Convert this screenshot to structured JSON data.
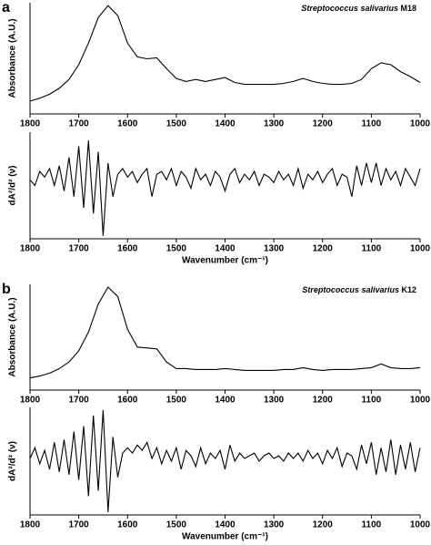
{
  "chart_data": [
    {
      "type": "line",
      "panel": "a",
      "title": "Streptococcus salivarius",
      "strain": "M18",
      "ylabel": "Absorbance (A.U.)",
      "color": "#000000",
      "xlim": [
        1800,
        1000
      ],
      "ylim": [
        -0.1,
        1.03
      ],
      "xticks": [
        1800,
        1700,
        1600,
        1500,
        1400,
        1300,
        1200,
        1100,
        1000
      ],
      "x": [
        1800,
        1780,
        1760,
        1740,
        1720,
        1700,
        1680,
        1660,
        1640,
        1620,
        1600,
        1580,
        1560,
        1540,
        1520,
        1500,
        1480,
        1460,
        1440,
        1420,
        1400,
        1380,
        1360,
        1340,
        1320,
        1300,
        1280,
        1260,
        1240,
        1220,
        1200,
        1180,
        1160,
        1140,
        1120,
        1100,
        1080,
        1060,
        1040,
        1020,
        1000
      ],
      "values": [
        0.03,
        0.06,
        0.1,
        0.16,
        0.25,
        0.4,
        0.62,
        0.88,
        1.0,
        0.9,
        0.62,
        0.48,
        0.46,
        0.47,
        0.36,
        0.26,
        0.23,
        0.25,
        0.23,
        0.25,
        0.27,
        0.22,
        0.2,
        0.2,
        0.2,
        0.2,
        0.21,
        0.23,
        0.26,
        0.23,
        0.21,
        0.2,
        0.2,
        0.21,
        0.25,
        0.36,
        0.42,
        0.4,
        0.33,
        0.28,
        0.22
      ]
    },
    {
      "type": "line",
      "ylabel": "dA²/d² (ν)",
      "xlabel": "Wavenumber (cm⁻¹)",
      "color": "#000000",
      "xlim": [
        1800,
        1000
      ],
      "ylim": [
        -1.05,
        0.85
      ],
      "xticks": [
        1800,
        1700,
        1600,
        1500,
        1400,
        1300,
        1200,
        1100,
        1000
      ],
      "x": [
        1800,
        1790,
        1780,
        1770,
        1760,
        1750,
        1740,
        1730,
        1720,
        1710,
        1700,
        1690,
        1680,
        1670,
        1660,
        1650,
        1640,
        1630,
        1620,
        1610,
        1600,
        1590,
        1580,
        1570,
        1560,
        1550,
        1540,
        1530,
        1520,
        1510,
        1500,
        1490,
        1480,
        1470,
        1460,
        1450,
        1440,
        1430,
        1420,
        1410,
        1400,
        1390,
        1380,
        1370,
        1360,
        1350,
        1340,
        1330,
        1320,
        1310,
        1300,
        1290,
        1280,
        1270,
        1260,
        1250,
        1240,
        1230,
        1220,
        1210,
        1200,
        1190,
        1180,
        1170,
        1160,
        1150,
        1140,
        1130,
        1120,
        1110,
        1100,
        1090,
        1080,
        1070,
        1060,
        1050,
        1040,
        1030,
        1020,
        1010,
        1000
      ],
      "values": [
        0.0,
        -0.1,
        0.15,
        0.05,
        0.2,
        -0.1,
        0.25,
        -0.2,
        0.4,
        -0.3,
        0.6,
        -0.5,
        0.7,
        -0.6,
        0.5,
        -1.0,
        0.3,
        -0.3,
        0.1,
        0.2,
        0.05,
        0.15,
        -0.05,
        0.1,
        0.2,
        -0.3,
        0.1,
        0.15,
        0.0,
        0.2,
        -0.1,
        0.15,
        0.05,
        -0.15,
        0.2,
        0.0,
        0.1,
        -0.1,
        0.15,
        0.05,
        -0.2,
        0.1,
        0.2,
        -0.05,
        0.1,
        0.0,
        0.15,
        -0.1,
        0.1,
        0.05,
        -0.05,
        0.15,
        0.0,
        0.1,
        -0.1,
        0.2,
        -0.15,
        0.1,
        0.0,
        0.15,
        -0.05,
        0.1,
        0.2,
        -0.1,
        0.1,
        0.05,
        -0.3,
        0.25,
        -0.1,
        0.3,
        -0.05,
        0.3,
        -0.1,
        0.2,
        0.0,
        0.15,
        -0.1,
        0.2,
        0.05,
        -0.1,
        0.2
      ]
    },
    {
      "type": "line",
      "panel": "b",
      "title": "Streptococcus salivarius",
      "strain": "K12",
      "ylabel": "Absorbance (A.U.)",
      "color": "#000000",
      "xlim": [
        1800,
        1000
      ],
      "ylim": [
        -0.1,
        1.03
      ],
      "xticks": [
        1800,
        1700,
        1600,
        1500,
        1400,
        1300,
        1200,
        1100,
        1000
      ],
      "x": [
        1800,
        1780,
        1760,
        1740,
        1720,
        1700,
        1680,
        1660,
        1640,
        1620,
        1600,
        1580,
        1560,
        1540,
        1520,
        1500,
        1480,
        1460,
        1440,
        1420,
        1400,
        1380,
        1360,
        1340,
        1320,
        1300,
        1280,
        1260,
        1240,
        1220,
        1200,
        1180,
        1160,
        1140,
        1120,
        1100,
        1080,
        1060,
        1040,
        1020,
        1000
      ],
      "values": [
        0.03,
        0.05,
        0.08,
        0.13,
        0.2,
        0.32,
        0.52,
        0.82,
        1.0,
        0.9,
        0.55,
        0.36,
        0.35,
        0.34,
        0.2,
        0.13,
        0.13,
        0.12,
        0.12,
        0.12,
        0.13,
        0.12,
        0.11,
        0.11,
        0.11,
        0.11,
        0.12,
        0.12,
        0.14,
        0.12,
        0.11,
        0.12,
        0.12,
        0.12,
        0.13,
        0.14,
        0.18,
        0.14,
        0.13,
        0.13,
        0.14
      ]
    },
    {
      "type": "line",
      "ylabel": "dA²/d² (ν)",
      "xlabel": "Wavenumber (cm⁻¹)",
      "color": "#000000",
      "xlim": [
        1800,
        1000
      ],
      "ylim": [
        -1.05,
        0.95
      ],
      "xticks": [
        1800,
        1700,
        1600,
        1500,
        1400,
        1300,
        1200,
        1100,
        1000
      ],
      "x": [
        1800,
        1790,
        1780,
        1770,
        1760,
        1750,
        1740,
        1730,
        1720,
        1710,
        1700,
        1690,
        1680,
        1670,
        1660,
        1650,
        1640,
        1630,
        1620,
        1610,
        1600,
        1590,
        1580,
        1570,
        1560,
        1550,
        1540,
        1530,
        1520,
        1510,
        1500,
        1490,
        1480,
        1470,
        1460,
        1450,
        1440,
        1430,
        1420,
        1410,
        1400,
        1390,
        1380,
        1370,
        1360,
        1350,
        1340,
        1330,
        1320,
        1310,
        1300,
        1290,
        1280,
        1270,
        1260,
        1250,
        1240,
        1230,
        1220,
        1210,
        1200,
        1190,
        1180,
        1170,
        1160,
        1150,
        1140,
        1130,
        1120,
        1110,
        1100,
        1090,
        1080,
        1070,
        1060,
        1050,
        1040,
        1030,
        1020,
        1010,
        1000
      ],
      "values": [
        0.0,
        0.2,
        -0.1,
        0.15,
        -0.2,
        0.3,
        -0.25,
        0.35,
        -0.3,
        0.5,
        -0.4,
        0.6,
        -0.7,
        0.8,
        -0.6,
        0.9,
        -1.0,
        0.4,
        -0.35,
        0.1,
        0.2,
        0.1,
        0.25,
        0.15,
        0.3,
        0.0,
        0.2,
        -0.1,
        0.15,
        -0.05,
        0.2,
        -0.2,
        0.15,
        0.05,
        -0.15,
        0.2,
        -0.1,
        0.1,
        0.0,
        0.15,
        -0.2,
        0.25,
        -0.05,
        0.1,
        0.0,
        0.05,
        0.1,
        -0.05,
        0.05,
        0.1,
        0.0,
        0.05,
        -0.05,
        0.1,
        0.0,
        0.1,
        -0.05,
        0.15,
        0.0,
        0.1,
        -0.1,
        0.15,
        0.0,
        0.2,
        -0.15,
        0.1,
        0.05,
        -0.2,
        0.25,
        -0.1,
        0.3,
        -0.3,
        0.2,
        -0.25,
        0.35,
        -0.3,
        0.25,
        -0.2,
        0.3,
        -0.25,
        0.2
      ]
    }
  ]
}
